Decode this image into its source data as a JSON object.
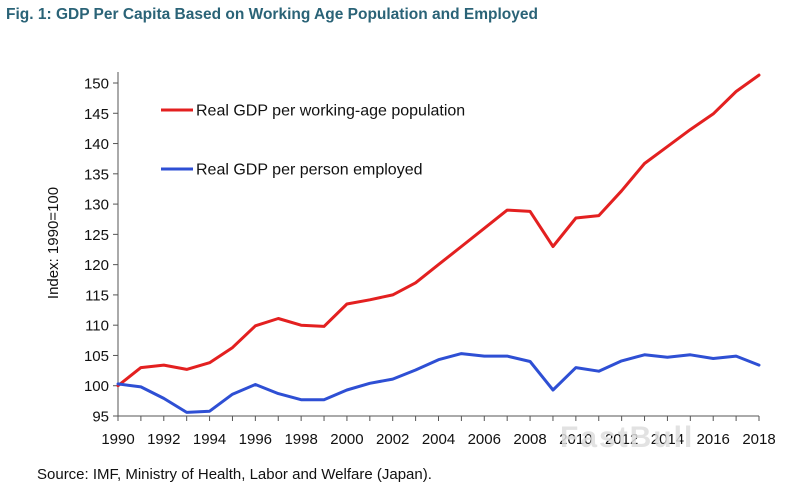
{
  "title": "Fig. 1: GDP Per Capita Based on Working Age Population and Employed",
  "source": "Source: IMF, Ministry of Health, Labor and Welfare (Japan).",
  "watermark": "FastBull",
  "chart_data": {
    "type": "line",
    "title": "Fig. 1: GDP Per Capita Based on Working Age Population and Employed",
    "xlabel": "",
    "ylabel": "Index: 1990=100",
    "x": [
      1990,
      1991,
      1992,
      1993,
      1994,
      1995,
      1996,
      1997,
      1998,
      1999,
      2000,
      2001,
      2002,
      2003,
      2004,
      2005,
      2006,
      2007,
      2008,
      2009,
      2010,
      2011,
      2012,
      2013,
      2014,
      2015,
      2016,
      2017,
      2018
    ],
    "xticks": [
      1990,
      1992,
      1994,
      1996,
      1998,
      2000,
      2002,
      2004,
      2006,
      2008,
      2010,
      2012,
      2014,
      2016,
      2018
    ],
    "xlim": [
      1990,
      2018
    ],
    "ylim": [
      95,
      150
    ],
    "yticks": [
      95,
      100,
      105,
      110,
      115,
      120,
      125,
      130,
      135,
      140,
      145,
      150
    ],
    "grid": false,
    "legend_position": "top-left",
    "series": [
      {
        "name": "Real GDP per working-age population",
        "color": "#e32020",
        "values": [
          100,
          103,
          103.4,
          102.7,
          103.8,
          106.3,
          109.9,
          111.1,
          110,
          109.8,
          113.5,
          114.2,
          115,
          117,
          120,
          123,
          126,
          129,
          128.8,
          123,
          127.7,
          128.1,
          132.2,
          136.7,
          139.5,
          142.3,
          144.9,
          148.6,
          151.3
        ]
      },
      {
        "name": "Real GDP per person employed",
        "color": "#2e4fd4",
        "values": [
          100.3,
          99.8,
          97.9,
          95.6,
          95.8,
          98.6,
          100.2,
          98.7,
          97.7,
          97.7,
          99.3,
          100.4,
          101.1,
          102.6,
          104.3,
          105.3,
          104.9,
          104.9,
          104,
          99.3,
          103,
          102.4,
          104.1,
          105.1,
          104.7,
          105.1,
          104.5,
          104.9,
          103.4
        ]
      }
    ]
  }
}
